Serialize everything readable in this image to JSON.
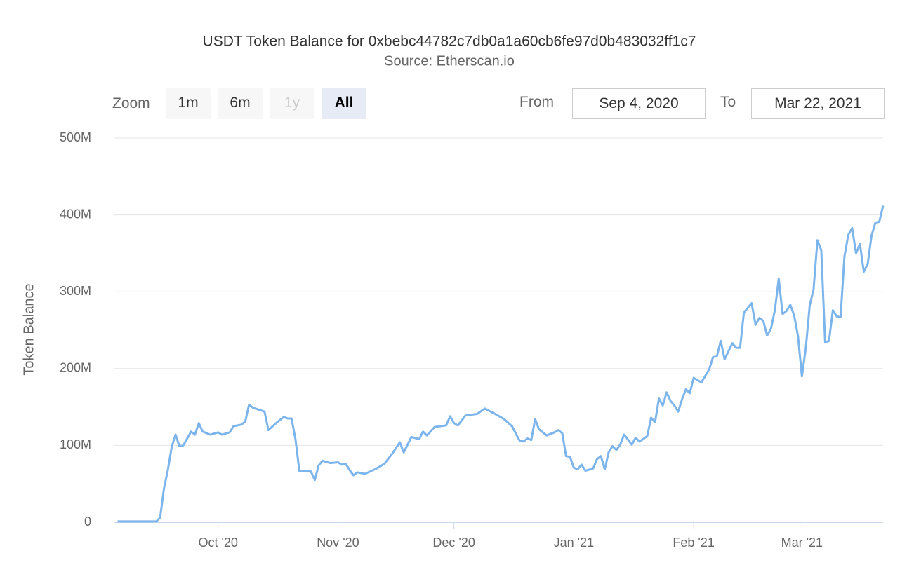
{
  "chart_data": {
    "type": "line",
    "title": "USDT Token Balance for 0xbebc44782c7db0a1a60cb6fe97d0b483032ff1c7",
    "subtitle": "Source: Etherscan.io",
    "y_label": "Token Balance",
    "color": "#7cb5ec",
    "grid": true,
    "xlim": [
      "2020-09-04",
      "2021-03-22"
    ],
    "xticks": [
      {
        "value": "2020-10-01",
        "label": "Oct '20"
      },
      {
        "value": "2020-11-01",
        "label": "Nov '20"
      },
      {
        "value": "2020-12-01",
        "label": "Dec '20"
      },
      {
        "value": "2021-01-01",
        "label": "Jan '21"
      },
      {
        "value": "2021-02-01",
        "label": "Feb '21"
      },
      {
        "value": "2021-03-01",
        "label": "Mar '21"
      }
    ],
    "ylim": [
      0,
      500000000
    ],
    "yticks": [
      0,
      {
        "value": 100000000,
        "label": "100M"
      },
      {
        "value": 200000000,
        "label": "200M"
      },
      {
        "value": 300000000,
        "label": "300M"
      },
      {
        "value": 400000000,
        "label": "400M"
      },
      {
        "value": 500000000,
        "label": "500M"
      }
    ],
    "x": [
      "2020-09-05",
      "2020-09-15",
      "2020-09-16",
      "2020-09-17",
      "2020-09-18",
      "2020-09-19",
      "2020-09-20",
      "2020-09-21",
      "2020-09-22",
      "2020-09-24",
      "2020-09-25",
      "2020-09-26",
      "2020-09-27",
      "2020-09-29",
      "2020-10-01",
      "2020-10-02",
      "2020-10-04",
      "2020-10-05",
      "2020-10-07",
      "2020-10-08",
      "2020-10-09",
      "2020-10-10",
      "2020-10-13",
      "2020-10-14",
      "2020-10-16",
      "2020-10-18",
      "2020-10-19",
      "2020-10-20",
      "2020-10-21",
      "2020-10-22",
      "2020-10-24",
      "2020-10-25",
      "2020-10-26",
      "2020-10-27",
      "2020-10-28",
      "2020-10-30",
      "2020-11-01",
      "2020-11-02",
      "2020-11-03",
      "2020-11-04",
      "2020-11-05",
      "2020-11-06",
      "2020-11-08",
      "2020-11-11",
      "2020-11-13",
      "2020-11-15",
      "2020-11-17",
      "2020-11-18",
      "2020-11-20",
      "2020-11-22",
      "2020-11-23",
      "2020-11-24",
      "2020-11-26",
      "2020-11-29",
      "2020-11-30",
      "2020-12-01",
      "2020-12-02",
      "2020-12-04",
      "2020-12-07",
      "2020-12-09",
      "2020-12-12",
      "2020-12-14",
      "2020-12-16",
      "2020-12-18",
      "2020-12-19",
      "2020-12-20",
      "2020-12-21",
      "2020-12-22",
      "2020-12-23",
      "2020-12-25",
      "2020-12-27",
      "2020-12-28",
      "2020-12-29",
      "2020-12-30",
      "2020-12-31",
      "2021-01-01",
      "2021-01-02",
      "2021-01-03",
      "2021-01-04",
      "2021-01-06",
      "2021-01-07",
      "2021-01-08",
      "2021-01-09",
      "2021-01-10",
      "2021-01-11",
      "2021-01-12",
      "2021-01-13",
      "2021-01-14",
      "2021-01-16",
      "2021-01-17",
      "2021-01-18",
      "2021-01-20",
      "2021-01-21",
      "2021-01-22",
      "2021-01-23",
      "2021-01-24",
      "2021-01-25",
      "2021-01-26",
      "2021-01-27",
      "2021-01-28",
      "2021-01-29",
      "2021-01-30",
      "2021-01-31",
      "2021-02-01",
      "2021-02-03",
      "2021-02-05",
      "2021-02-06",
      "2021-02-07",
      "2021-02-08",
      "2021-02-09",
      "2021-02-11",
      "2021-02-12",
      "2021-02-13",
      "2021-02-14",
      "2021-02-16",
      "2021-02-17",
      "2021-02-18",
      "2021-02-19",
      "2021-02-20",
      "2021-02-21",
      "2021-02-22",
      "2021-02-23",
      "2021-02-24",
      "2021-02-25",
      "2021-02-26",
      "2021-02-27",
      "2021-02-28",
      "2021-03-01",
      "2021-03-02",
      "2021-03-03",
      "2021-03-04",
      "2021-03-05",
      "2021-03-06",
      "2021-03-07",
      "2021-03-08",
      "2021-03-09",
      "2021-03-10",
      "2021-03-11",
      "2021-03-12",
      "2021-03-13",
      "2021-03-14",
      "2021-03-15",
      "2021-03-16",
      "2021-03-17",
      "2021-03-18",
      "2021-03-19",
      "2021-03-20",
      "2021-03-21",
      "2021-03-22"
    ],
    "values": [
      1000000,
      1000000,
      6000000,
      44000000,
      68000000,
      98000000,
      114000000,
      99000000,
      100000000,
      118000000,
      114000000,
      129000000,
      118000000,
      114000000,
      117000000,
      114000000,
      117000000,
      125000000,
      127000000,
      131000000,
      153000000,
      149000000,
      144000000,
      120000000,
      129000000,
      137000000,
      135000000,
      135000000,
      108000000,
      67000000,
      67000000,
      66000000,
      55000000,
      74000000,
      80000000,
      77000000,
      78000000,
      75000000,
      76000000,
      68000000,
      61000000,
      65000000,
      63000000,
      70000000,
      76000000,
      89000000,
      104000000,
      91000000,
      111000000,
      108000000,
      118000000,
      113000000,
      124000000,
      126000000,
      138000000,
      129000000,
      126000000,
      139000000,
      141000000,
      148000000,
      140000000,
      134000000,
      125000000,
      106000000,
      105000000,
      109000000,
      107000000,
      134000000,
      121000000,
      113000000,
      117000000,
      120000000,
      116000000,
      86000000,
      85000000,
      71000000,
      69000000,
      75000000,
      67000000,
      70000000,
      82000000,
      86000000,
      69000000,
      91000000,
      99000000,
      94000000,
      101000000,
      114000000,
      101000000,
      110000000,
      105000000,
      112000000,
      136000000,
      130000000,
      161000000,
      152000000,
      169000000,
      158000000,
      152000000,
      144000000,
      160000000,
      173000000,
      168000000,
      188000000,
      182000000,
      199000000,
      215000000,
      216000000,
      236000000,
      212000000,
      233000000,
      227000000,
      227000000,
      273000000,
      285000000,
      257000000,
      266000000,
      262000000,
      243000000,
      252000000,
      276000000,
      317000000,
      271000000,
      275000000,
      283000000,
      269000000,
      242000000,
      190000000,
      226000000,
      282000000,
      303000000,
      367000000,
      354000000,
      234000000,
      236000000,
      276000000,
      268000000,
      267000000,
      346000000,
      374000000,
      383000000,
      350000000,
      362000000,
      326000000,
      336000000,
      373000000,
      390000000,
      391000000,
      412000000
    ]
  },
  "range_selector": {
    "zoom_label": "Zoom",
    "buttons": [
      "1m",
      "6m",
      "1y",
      "All"
    ],
    "from_label": "From",
    "from": "Sep 4, 2020",
    "to_label": "To",
    "to": "Mar 22, 2021"
  }
}
